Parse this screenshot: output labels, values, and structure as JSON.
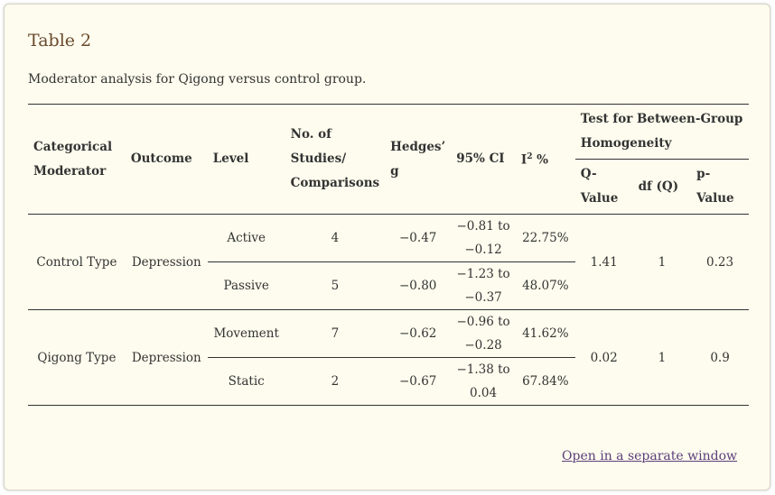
{
  "title": "Table 2",
  "caption": "Moderator analysis for Qigong versus control group.",
  "headers": {
    "categorical_moderator": "Categorical Moderator",
    "outcome": "Outcome",
    "level": "Level",
    "studies": "No. of Studies/ Comparisons",
    "hedges": "Hedges’ g",
    "ci": "95% CI",
    "i2_base": "I",
    "i2_sup": "2",
    "i2_suffix": " %",
    "test_group": "Test for Between-Group Homogeneity",
    "q_value": "Q-Value",
    "df_q": "df (Q)",
    "p_value": "p-Value"
  },
  "groups": [
    {
      "moderator": "Control Type",
      "outcome": "Depression",
      "q": "1.41",
      "df": "1",
      "p": "0.23",
      "rows": [
        {
          "level": "Active",
          "studies": "4",
          "g": "−0.47",
          "ci": "−0.81 to −0.12",
          "i2": "22.75%"
        },
        {
          "level": "Passive",
          "studies": "5",
          "g": "−0.80",
          "ci": "−1.23 to −0.37",
          "i2": "48.07%"
        }
      ]
    },
    {
      "moderator": "Qigong Type",
      "outcome": "Depression",
      "q": "0.02",
      "df": "1",
      "p": "0.9",
      "rows": [
        {
          "level": "Movement",
          "studies": "7",
          "g": "−0.62",
          "ci": "−0.96 to −0.28",
          "i2": "41.62%"
        },
        {
          "level": "Static",
          "studies": "2",
          "g": "−0.67",
          "ci": "−1.38 to 0.04",
          "i2": "67.84%"
        }
      ]
    }
  ],
  "link_text": "Open in a separate window"
}
